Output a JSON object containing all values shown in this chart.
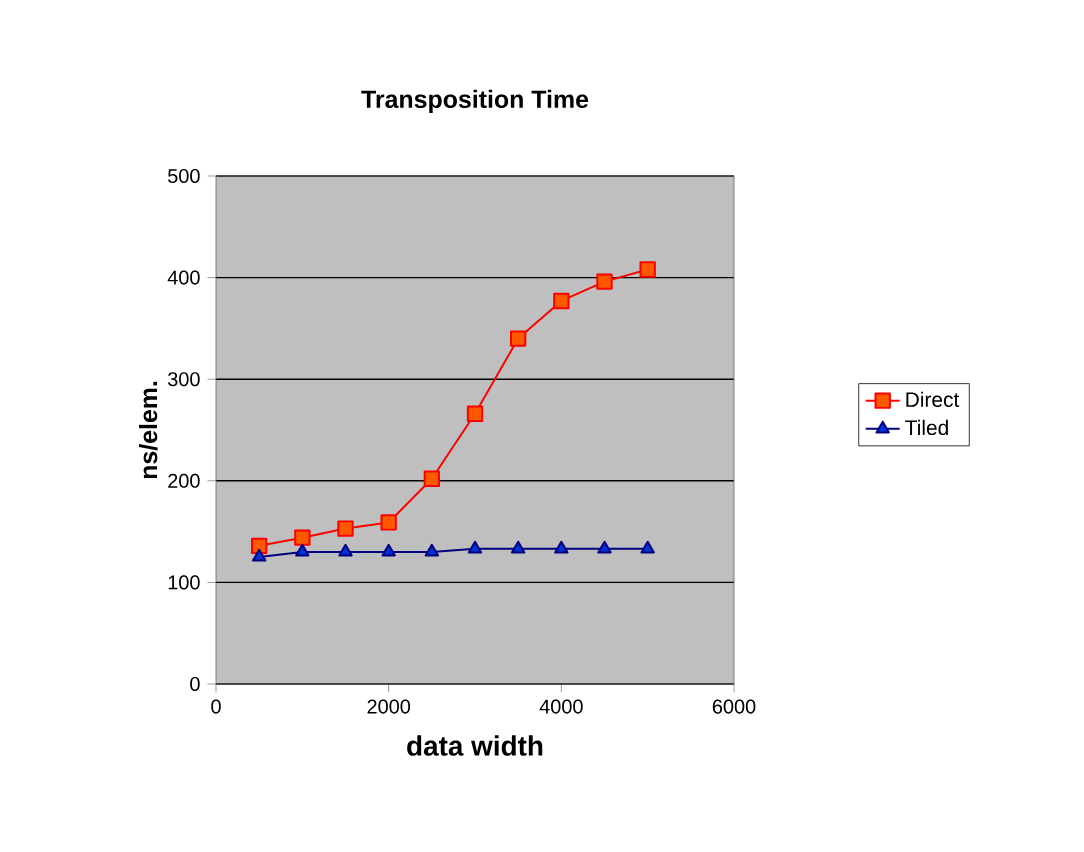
{
  "chart_data": {
    "type": "line",
    "title": "Transposition Time",
    "xlabel": "data width",
    "ylabel": "ns/elem.",
    "x": [
      500,
      1000,
      1500,
      2000,
      2500,
      3000,
      3500,
      4000,
      4500,
      5000
    ],
    "series": [
      {
        "name": "Direct",
        "color": "#ff0000",
        "marker": "square",
        "values": [
          136,
          144,
          153,
          159,
          202,
          266,
          340,
          377,
          396,
          408
        ]
      },
      {
        "name": "Tiled",
        "color": "#000080",
        "marker": "triangle",
        "values": [
          125,
          130,
          130,
          130,
          130,
          133,
          133,
          133,
          133,
          133
        ]
      }
    ],
    "xlim": [
      0,
      6000
    ],
    "ylim": [
      0,
      500
    ],
    "xticks": [
      0,
      2000,
      4000,
      6000
    ],
    "yticks": [
      0,
      100,
      200,
      300,
      400,
      500
    ],
    "grid": "y",
    "legend": "right",
    "line_style": "solid"
  }
}
